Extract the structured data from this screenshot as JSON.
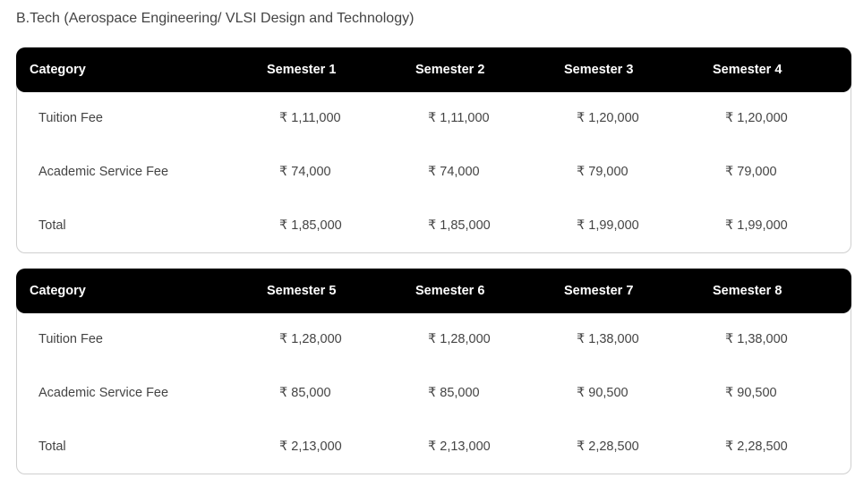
{
  "title": "B.Tech (Aerospace Engineering/ VLSI Design and Technology)",
  "tables": [
    {
      "headers": [
        "Category",
        "Semester 1",
        "Semester 2",
        "Semester 3",
        "Semester 4"
      ],
      "rows": [
        [
          "Tuition Fee",
          "₹ 1,11,000",
          "₹ 1,11,000",
          "₹ 1,20,000",
          "₹ 1,20,000"
        ],
        [
          "Academic Service Fee",
          "₹ 74,000",
          "₹ 74,000",
          "₹ 79,000",
          "₹ 79,000"
        ],
        [
          "Total",
          "₹ 1,85,000",
          "₹ 1,85,000",
          "₹ 1,99,000",
          "₹ 1,99,000"
        ]
      ]
    },
    {
      "headers": [
        "Category",
        "Semester 5",
        "Semester 6",
        "Semester 7",
        "Semester 8"
      ],
      "rows": [
        [
          "Tuition Fee",
          "₹ 1,28,000",
          "₹ 1,28,000",
          "₹ 1,38,000",
          "₹ 1,38,000"
        ],
        [
          "Academic Service Fee",
          "₹ 85,000",
          "₹ 85,000",
          "₹ 90,500",
          "₹ 90,500"
        ],
        [
          "Total",
          "₹ 2,13,000",
          "₹ 2,13,000",
          "₹ 2,28,500",
          "₹ 2,28,500"
        ]
      ]
    }
  ]
}
